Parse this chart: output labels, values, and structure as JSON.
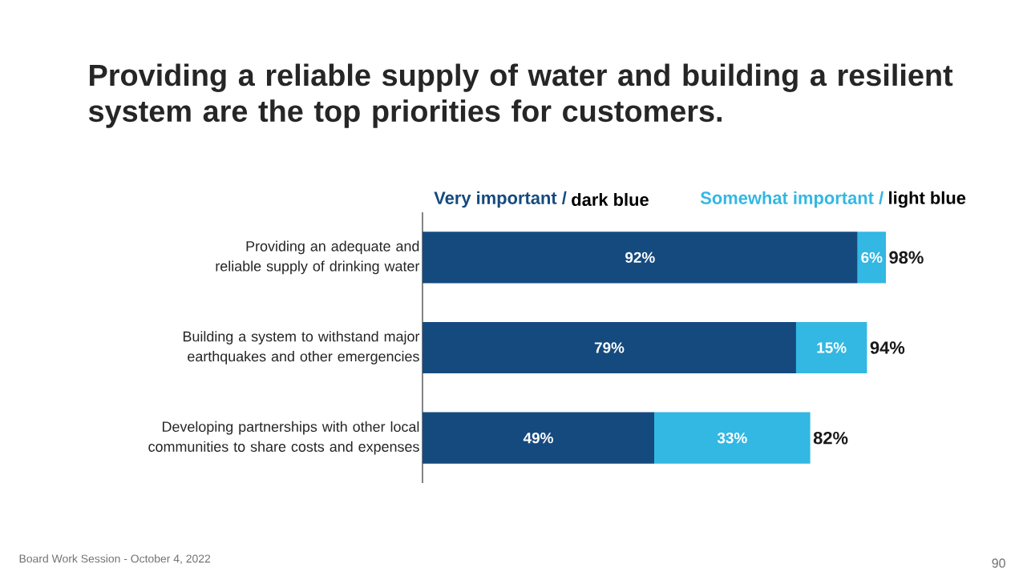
{
  "chart_data": {
    "type": "bar",
    "orientation": "horizontal",
    "stacked": true,
    "title": "Providing a reliable supply of water and building a resilient system are the top priorities for customers.",
    "categories": [
      "Providing an adequate and reliable supply of drinking water",
      "Building a system to withstand major earthquakes and other emergencies",
      "Developing partnerships with other local communities to share costs and expenses"
    ],
    "series": [
      {
        "name": "Very important /",
        "color": "#154a7e",
        "values": [
          92,
          79,
          49
        ],
        "value_labels": [
          "92%",
          "79%",
          "49%"
        ]
      },
      {
        "name": "Somewhat important /",
        "color": "#33b7e3",
        "values": [
          6,
          15,
          33
        ],
        "value_labels": [
          "6%",
          "15%",
          "33%"
        ]
      }
    ],
    "totals": [
      "98%",
      "94%",
      "82%"
    ],
    "tick_labels": "y",
    "annotations": [
      "dark blue",
      "light blue",
      "Board Work Session - October 4, 2022",
      "90"
    ]
  }
}
